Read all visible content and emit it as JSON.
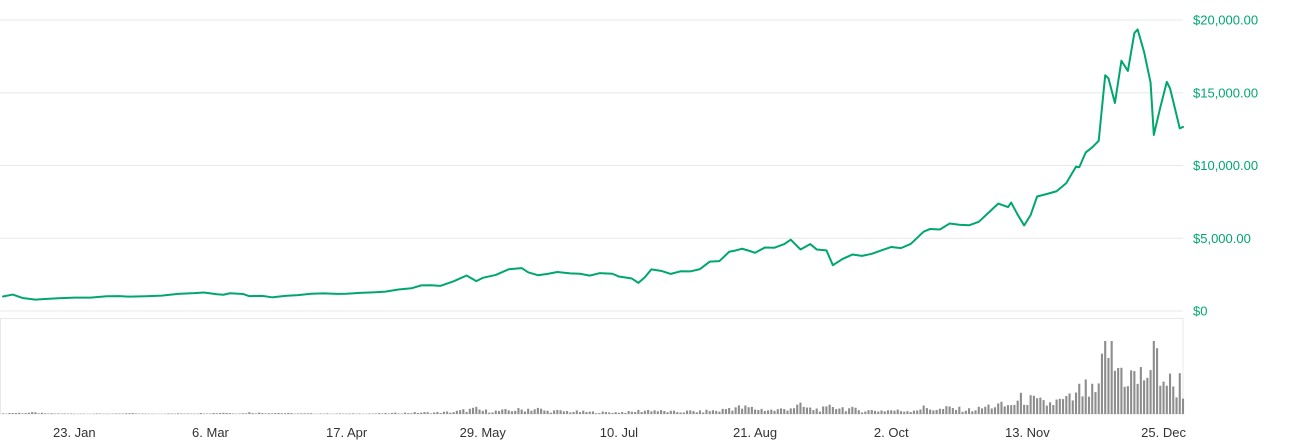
{
  "chart_data": {
    "type": "line",
    "title": "",
    "x_unit": "date (2017)",
    "ylim": [
      0,
      20000
    ],
    "grid": "horizontal",
    "legend": "none",
    "colors": {
      "price_line": "#00a76d",
      "y_axis_label": "#00a76d",
      "x_axis_label": "#333333",
      "gridline": "#e8e8e8",
      "volume_bar": "#8d8d8d",
      "pane_border": "#e9e9e9",
      "background": "#ffffff"
    },
    "y_ticks": [
      {
        "value": 20000,
        "label": "$20,000.00"
      },
      {
        "value": 15000,
        "label": "$15,000.00"
      },
      {
        "value": 10000,
        "label": "$10,000.00"
      },
      {
        "value": 5000,
        "label": "$5,000.00"
      },
      {
        "value": 0,
        "label": "$0"
      }
    ],
    "x_ticks": [
      {
        "date": "01-23",
        "label": "23. Jan"
      },
      {
        "date": "03-06",
        "label": "6. Mar"
      },
      {
        "date": "04-17",
        "label": "17. Apr"
      },
      {
        "date": "05-29",
        "label": "29. May"
      },
      {
        "date": "07-10",
        "label": "10. Jul"
      },
      {
        "date": "08-21",
        "label": "21. Aug"
      },
      {
        "date": "10-02",
        "label": "2. Oct"
      },
      {
        "date": "11-13",
        "label": "13. Nov"
      },
      {
        "date": "12-25",
        "label": "25. Dec"
      }
    ],
    "series": [
      {
        "name": "price",
        "type": "line",
        "color": "#00a76d",
        "unit": "USD"
      },
      {
        "name": "volume",
        "type": "bar",
        "color": "#8d8d8d",
        "unit": "USD billions"
      }
    ],
    "points": [
      [
        "01-01",
        998,
        0.13
      ],
      [
        "01-04",
        1130,
        0.35
      ],
      [
        "01-07",
        895,
        0.32
      ],
      [
        "01-11",
        785,
        0.4
      ],
      [
        "01-14",
        825,
        0.16
      ],
      [
        "01-18",
        880,
        0.14
      ],
      [
        "01-23",
        920,
        0.12
      ],
      [
        "01-28",
        920,
        0.1
      ],
      [
        "02-02",
        1010,
        0.12
      ],
      [
        "02-06",
        1025,
        0.1
      ],
      [
        "02-09",
        985,
        0.22
      ],
      [
        "02-14",
        1010,
        0.1
      ],
      [
        "02-19",
        1055,
        0.1
      ],
      [
        "02-24",
        1180,
        0.16
      ],
      [
        "03-01",
        1225,
        0.2
      ],
      [
        "03-04",
        1275,
        0.26
      ],
      [
        "03-08",
        1150,
        0.3
      ],
      [
        "03-10",
        1115,
        0.45
      ],
      [
        "03-12",
        1220,
        0.26
      ],
      [
        "03-16",
        1170,
        0.2
      ],
      [
        "03-18",
        1020,
        0.45
      ],
      [
        "03-22",
        1040,
        0.3
      ],
      [
        "03-25",
        940,
        0.36
      ],
      [
        "03-29",
        1040,
        0.25
      ],
      [
        "04-02",
        1095,
        0.16
      ],
      [
        "04-06",
        1185,
        0.16
      ],
      [
        "04-10",
        1210,
        0.13
      ],
      [
        "04-14",
        1175,
        0.12
      ],
      [
        "04-17",
        1190,
        0.12
      ],
      [
        "04-21",
        1245,
        0.13
      ],
      [
        "04-25",
        1280,
        0.15
      ],
      [
        "04-29",
        1330,
        0.2
      ],
      [
        "05-03",
        1480,
        0.3
      ],
      [
        "05-07",
        1560,
        0.36
      ],
      [
        "05-10",
        1760,
        0.46
      ],
      [
        "05-13",
        1770,
        0.4
      ],
      [
        "05-16",
        1730,
        0.5
      ],
      [
        "05-20",
        2040,
        0.62
      ],
      [
        "05-24",
        2440,
        1.2
      ],
      [
        "05-27",
        2050,
        1.5
      ],
      [
        "05-29",
        2280,
        1.0
      ],
      [
        "06-02",
        2480,
        0.85
      ],
      [
        "06-06",
        2870,
        1.1
      ],
      [
        "06-10",
        2950,
        1.3
      ],
      [
        "06-12",
        2660,
        1.6
      ],
      [
        "06-15",
        2460,
        1.5
      ],
      [
        "06-18",
        2550,
        0.85
      ],
      [
        "06-21",
        2680,
        0.9
      ],
      [
        "06-25",
        2590,
        0.75
      ],
      [
        "06-28",
        2560,
        0.7
      ],
      [
        "07-01",
        2430,
        0.6
      ],
      [
        "07-04",
        2600,
        0.55
      ],
      [
        "07-08",
        2560,
        0.5
      ],
      [
        "07-10",
        2370,
        0.55
      ],
      [
        "07-14",
        2230,
        0.62
      ],
      [
        "07-16",
        1930,
        0.95
      ],
      [
        "07-18",
        2320,
        1.05
      ],
      [
        "07-20",
        2860,
        1.25
      ],
      [
        "07-23",
        2760,
        0.85
      ],
      [
        "07-26",
        2550,
        0.7
      ],
      [
        "07-29",
        2730,
        0.62
      ],
      [
        "08-01",
        2720,
        0.85
      ],
      [
        "08-04",
        2880,
        0.72
      ],
      [
        "08-07",
        3390,
        1.05
      ],
      [
        "08-10",
        3430,
        0.95
      ],
      [
        "08-13",
        4070,
        1.85
      ],
      [
        "08-15",
        4160,
        2.05
      ],
      [
        "08-17",
        4280,
        1.85
      ],
      [
        "08-19",
        4150,
        1.95
      ],
      [
        "08-21",
        4000,
        1.55
      ],
      [
        "08-24",
        4360,
        1.35
      ],
      [
        "08-27",
        4350,
        1.1
      ],
      [
        "08-30",
        4600,
        1.55
      ],
      [
        "09-01",
        4900,
        2.05
      ],
      [
        "09-04",
        4230,
        2.35
      ],
      [
        "09-07",
        4600,
        1.55
      ],
      [
        "09-09",
        4230,
        1.45
      ],
      [
        "09-12",
        4170,
        1.55
      ],
      [
        "09-14",
        3150,
        2.55
      ],
      [
        "09-17",
        3580,
        1.85
      ],
      [
        "09-20",
        3880,
        1.45
      ],
      [
        "09-23",
        3790,
        1.05
      ],
      [
        "09-26",
        3930,
        1.05
      ],
      [
        "09-29",
        4170,
        1.05
      ],
      [
        "10-02",
        4400,
        1.15
      ],
      [
        "10-05",
        4320,
        0.95
      ],
      [
        "10-08",
        4610,
        1.05
      ],
      [
        "10-12",
        5450,
        1.85
      ],
      [
        "10-14",
        5640,
        1.65
      ],
      [
        "10-17",
        5600,
        1.35
      ],
      [
        "10-20",
        6010,
        1.85
      ],
      [
        "10-23",
        5930,
        1.45
      ],
      [
        "10-26",
        5890,
        1.25
      ],
      [
        "10-29",
        6130,
        1.55
      ],
      [
        "11-01",
        6750,
        2.35
      ],
      [
        "11-04",
        7380,
        2.6
      ],
      [
        "11-07",
        7140,
        2.4
      ],
      [
        "11-08",
        7450,
        3.0
      ],
      [
        "11-10",
        6620,
        3.6
      ],
      [
        "11-12",
        5880,
        5.1
      ],
      [
        "11-14",
        6600,
        4.1
      ],
      [
        "11-16",
        7870,
        3.6
      ],
      [
        "11-19",
        8040,
        3.1
      ],
      [
        "11-22",
        8230,
        3.6
      ],
      [
        "11-25",
        8790,
        4.1
      ],
      [
        "11-28",
        9920,
        5.1
      ],
      [
        "11-29",
        9880,
        6.6
      ],
      [
        "12-01",
        10900,
        7.1
      ],
      [
        "12-03",
        11250,
        6.1
      ],
      [
        "12-05",
        11700,
        6.6
      ],
      [
        "12-07",
        16200,
        20.0
      ],
      [
        "12-08",
        16000,
        22.0
      ],
      [
        "12-10",
        14300,
        14.0
      ],
      [
        "12-12",
        17200,
        13.5
      ],
      [
        "12-14",
        16500,
        12.0
      ],
      [
        "12-16",
        19100,
        11.0
      ],
      [
        "12-17",
        19350,
        10.0
      ],
      [
        "12-19",
        17800,
        12.0
      ],
      [
        "12-21",
        15700,
        14.5
      ],
      [
        "12-22",
        12100,
        19.0
      ],
      [
        "12-24",
        14000,
        13.0
      ],
      [
        "12-26",
        15750,
        10.0
      ],
      [
        "12-27",
        15300,
        9.0
      ],
      [
        "12-28",
        14400,
        8.5
      ],
      [
        "12-30",
        12550,
        9.5
      ],
      [
        "12-31",
        12650,
        8.0
      ]
    ]
  }
}
